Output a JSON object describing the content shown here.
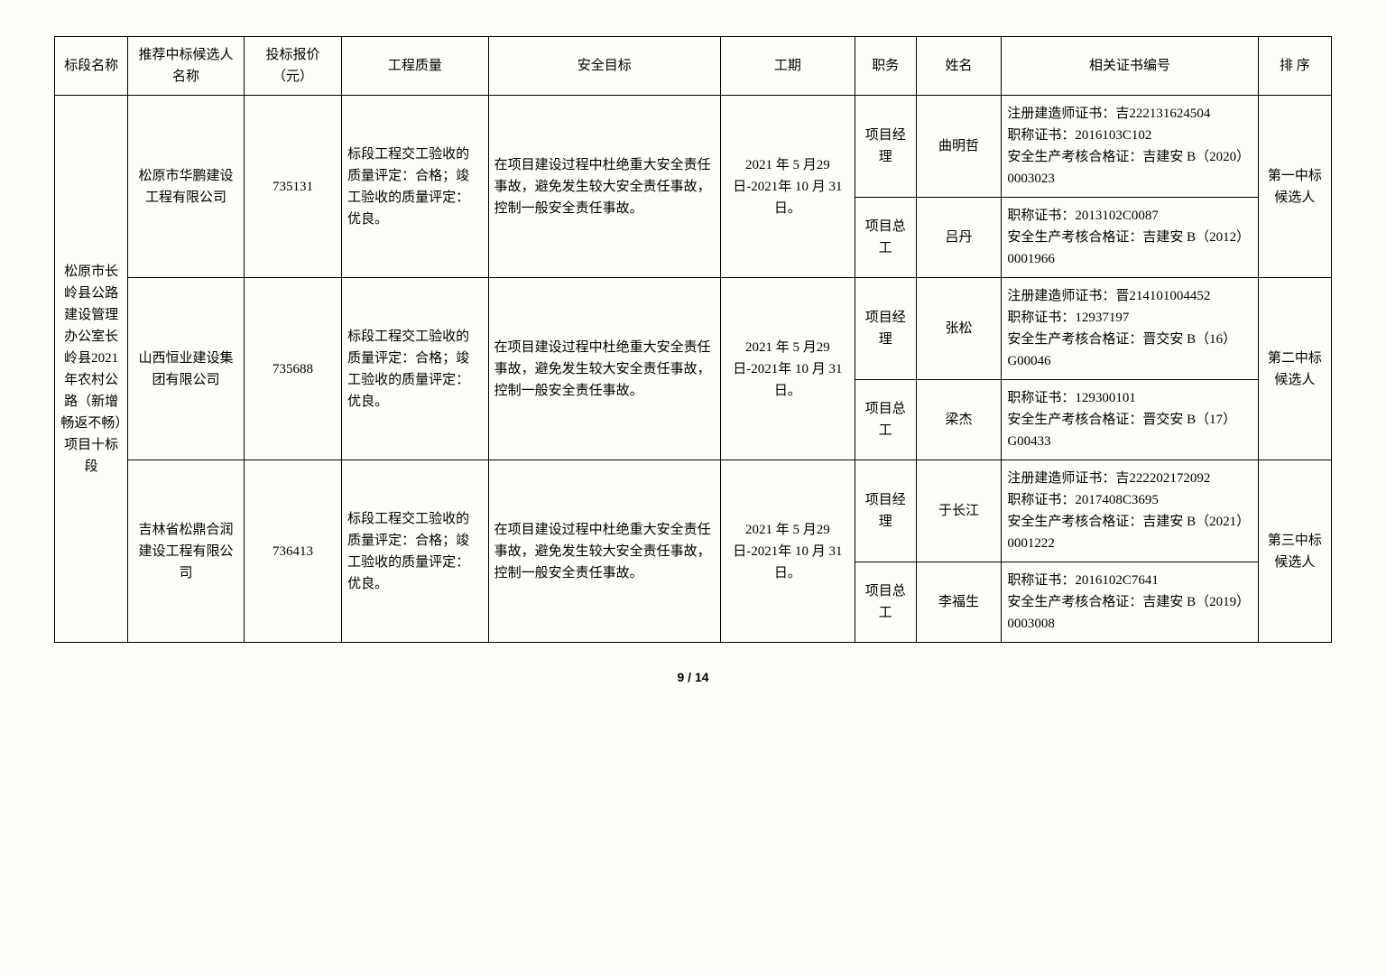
{
  "headers": {
    "section": "标段名称",
    "bidder": "推荐中标候选人名称",
    "price": "投标报价（元）",
    "quality": "工程质量",
    "safety": "安全目标",
    "period": "工期",
    "role": "职务",
    "name": "姓名",
    "cert": "相关证书编号",
    "rank": "排 序"
  },
  "section_name": "松原市长岭县公路建设管理办公室长岭县2021 年农村公路（新增畅返不畅）项目十标段",
  "quality_text": "标段工程交工验收的质量评定：合格；竣工验收的质量评定：优良。",
  "safety_text": "在项目建设过程中杜绝重大安全责任事故，避免发生较大安全责任事故，控制一般安全责任事故。",
  "period_text": "2021 年 5 月29 日-2021年 10 月 31日。",
  "role_pm": "项目经理",
  "role_ce": "项目总工",
  "bidders": [
    {
      "name": "松原市华鹏建设工程有限公司",
      "price": "735131",
      "pm_name": "曲明哲",
      "pm_cert": "注册建造师证书：吉222131624504\n职称证书：2016103C102\n安全生产考核合格证：吉建安 B（2020）0003023",
      "ce_name": "吕丹",
      "ce_cert": "职称证书：2013102C0087\n安全生产考核合格证：吉建安 B（2012）0001966",
      "rank": "第一中标候选人"
    },
    {
      "name": "山西恒业建设集团有限公司",
      "price": "735688",
      "pm_name": "张松",
      "pm_cert": "注册建造师证书：晋214101004452\n职称证书：12937197\n安全生产考核合格证：晋交安 B（16）G00046",
      "ce_name": "梁杰",
      "ce_cert": "职称证书：129300101\n安全生产考核合格证：晋交安 B（17）G00433",
      "rank": "第二中标候选人"
    },
    {
      "name": "吉林省松鼎合润建设工程有限公司",
      "price": "736413",
      "pm_name": "于长江",
      "pm_cert": "注册建造师证书：吉222202172092\n职称证书：2017408C3695\n安全生产考核合格证：吉建安 B（2021）0001222",
      "ce_name": "李福生",
      "ce_cert": "职称证书：2016102C7641\n安全生产考核合格证：吉建安 B（2019）0003008",
      "rank": "第三中标候选人"
    }
  ],
  "pager": "9 / 14"
}
